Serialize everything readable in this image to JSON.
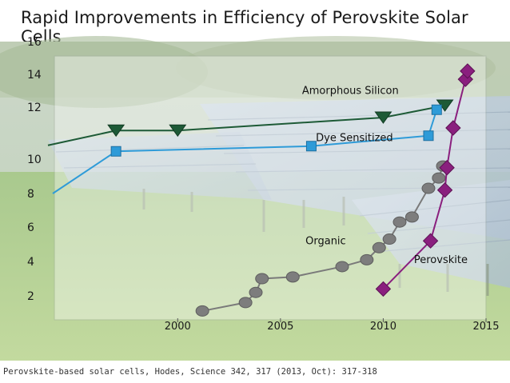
{
  "slide": {
    "title": "Rapid Improvements in Efficiency of Perovskite Solar Cells",
    "citation": "Perovskite-based solar cells, Hodes, Science 342, 317 (2013, Oct): 317-318"
  },
  "chart_data": {
    "type": "line",
    "title": "Rapid Improvements in Efficiency of Perovskite Solar Cells",
    "xlabel": "",
    "ylabel": "",
    "xlim": [
      1994,
      2015
    ],
    "ylim": [
      0,
      16
    ],
    "x_ticks": [
      2000,
      2005,
      2010,
      2015
    ],
    "y_ticks": [
      2,
      4,
      6,
      8,
      10,
      12,
      14,
      16
    ],
    "background": "photo of solar panel field",
    "series": [
      {
        "name": "Amorphous Silicon",
        "color": "#1d5a36",
        "marker": "triangle-down",
        "points": [
          [
            1997,
            11.1
          ],
          [
            2000,
            11.1
          ],
          [
            2010,
            11.6
          ],
          [
            2013,
            12.1
          ]
        ]
      },
      {
        "name": "Dye Sensitized",
        "color": "#2e9bd8",
        "marker": "square",
        "points": [
          [
            1997,
            10.3
          ],
          [
            2006.5,
            10.5
          ],
          [
            2012.2,
            10.9
          ],
          [
            2012.6,
            11.9
          ]
        ]
      },
      {
        "name": "Organic",
        "color": "#7a7a7a",
        "marker": "circle",
        "points": [
          [
            2001.2,
            1.1
          ],
          [
            2003.3,
            1.6
          ],
          [
            2003.8,
            2.2
          ],
          [
            2004.1,
            3.0
          ],
          [
            2005.6,
            3.1
          ],
          [
            2008,
            3.7
          ],
          [
            2009.2,
            4.1
          ],
          [
            2009.8,
            4.8
          ],
          [
            2010.3,
            5.3
          ],
          [
            2010.8,
            6.3
          ],
          [
            2011.4,
            6.6
          ],
          [
            2012.2,
            8.3
          ],
          [
            2012.7,
            8.9
          ],
          [
            2012.9,
            9.6
          ]
        ]
      },
      {
        "name": "Perovskite",
        "color": "#8a1f7e",
        "marker": "diamond",
        "points": [
          [
            2010,
            2.4
          ],
          [
            2012.3,
            5.2
          ],
          [
            2013,
            8.2
          ],
          [
            2013.1,
            9.5
          ],
          [
            2013.4,
            11.2
          ],
          [
            2014,
            13.7
          ],
          [
            2014.1,
            14.2
          ]
        ]
      }
    ],
    "annotations": [
      {
        "text": "Amorphous Silicon",
        "x": 2008.4,
        "y": 12.8
      },
      {
        "text": "Dye Sensitized",
        "x": 2008.6,
        "y": 10.7
      },
      {
        "text": "Organic",
        "x": 2007.2,
        "y": 5.0
      },
      {
        "text": "Perovskite",
        "x": 2012.8,
        "y": 3.9
      }
    ]
  }
}
